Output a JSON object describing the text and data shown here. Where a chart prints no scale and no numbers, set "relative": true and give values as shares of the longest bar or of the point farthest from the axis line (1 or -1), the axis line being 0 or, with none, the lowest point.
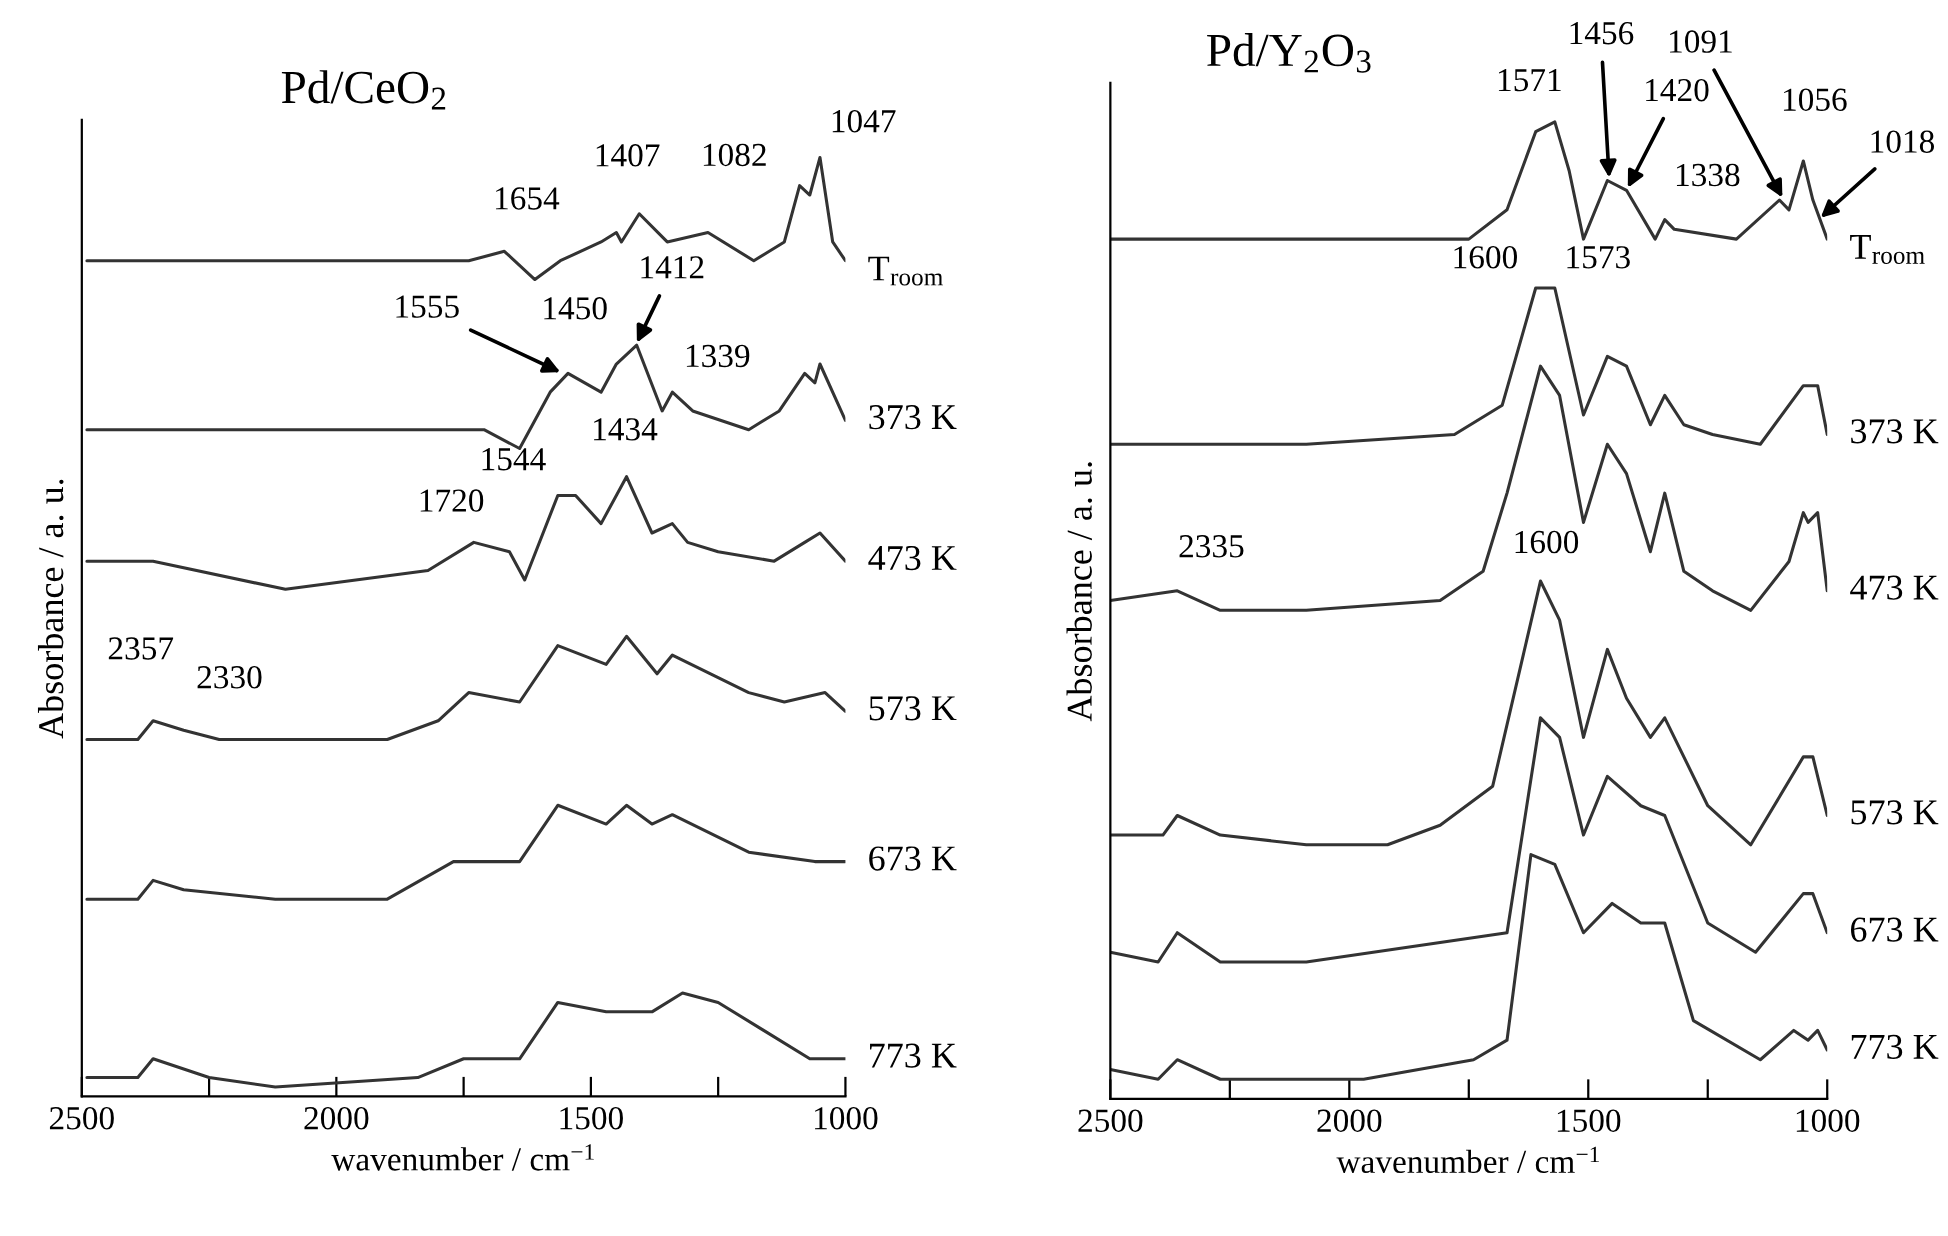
{
  "chart_data": [
    {
      "type": "line",
      "title": "Pd/CeO$_{2}$",
      "xlabel": "wavenumber / cm$^{−1}$",
      "ylabel": "Absorbance / a. u.",
      "relative": true,
      "tick_labels": "x",
      "xlim": [
        2500,
        1000
      ],
      "xticks": [
        2500,
        {
          "value": 2250,
          "label": null
        },
        2000,
        {
          "value": 1750,
          "label": null
        },
        1500,
        {
          "value": 1250,
          "label": null
        },
        1000
      ],
      "series": [
        {
          "name": "T$_{room}$",
          "color": "#333333",
          "x": [
            2490,
            2100,
            1740,
            1670,
            1610,
            1560,
            1480,
            1450,
            1440,
            1405,
            1350,
            1270,
            1180,
            1120,
            1090,
            1070,
            1050,
            1025,
            1000
          ],
          "values": [
            0.89,
            0.89,
            0.89,
            0.9,
            0.87,
            0.89,
            0.91,
            0.92,
            0.91,
            0.94,
            0.91,
            0.92,
            0.89,
            0.91,
            0.97,
            0.96,
            1.0,
            0.91,
            0.89
          ]
        },
        {
          "name": "373 K",
          "color": "#333333",
          "x": [
            2490,
            2100,
            1710,
            1640,
            1580,
            1545,
            1480,
            1450,
            1410,
            1360,
            1340,
            1300,
            1190,
            1130,
            1080,
            1060,
            1050,
            1000
          ],
          "values": [
            0.71,
            0.71,
            0.71,
            0.69,
            0.75,
            0.77,
            0.75,
            0.78,
            0.8,
            0.73,
            0.75,
            0.73,
            0.71,
            0.73,
            0.77,
            0.76,
            0.78,
            0.72
          ]
        },
        {
          "name": "473 K",
          "color": "#333333",
          "x": [
            2490,
            2360,
            2100,
            1820,
            1730,
            1660,
            1630,
            1565,
            1530,
            1480,
            1430,
            1380,
            1340,
            1310,
            1250,
            1140,
            1080,
            1050,
            1000
          ],
          "values": [
            0.57,
            0.57,
            0.54,
            0.56,
            0.59,
            0.58,
            0.55,
            0.64,
            0.64,
            0.61,
            0.66,
            0.6,
            0.61,
            0.59,
            0.58,
            0.57,
            0.59,
            0.6,
            0.57
          ]
        },
        {
          "name": "573 K",
          "color": "#333333",
          "x": [
            2490,
            2390,
            2360,
            2300,
            2230,
            2120,
            1900,
            1800,
            1740,
            1640,
            1565,
            1470,
            1430,
            1370,
            1340,
            1190,
            1120,
            1040,
            1000
          ],
          "values": [
            0.38,
            0.38,
            0.4,
            0.39,
            0.38,
            0.38,
            0.38,
            0.4,
            0.43,
            0.42,
            0.48,
            0.46,
            0.49,
            0.45,
            0.47,
            0.43,
            0.42,
            0.43,
            0.41
          ]
        },
        {
          "name": "673 K",
          "color": "#333333",
          "x": [
            2490,
            2390,
            2360,
            2300,
            2120,
            1900,
            1770,
            1640,
            1565,
            1470,
            1430,
            1380,
            1340,
            1190,
            1060,
            1025,
            1000
          ],
          "values": [
            0.21,
            0.21,
            0.23,
            0.22,
            0.21,
            0.21,
            0.25,
            0.25,
            0.31,
            0.29,
            0.31,
            0.29,
            0.3,
            0.26,
            0.25,
            0.25,
            0.25
          ]
        },
        {
          "name": "773 K",
          "color": "#333333",
          "x": [
            2490,
            2390,
            2360,
            2250,
            2120,
            1840,
            1750,
            1640,
            1565,
            1470,
            1380,
            1320,
            1250,
            1070,
            1000
          ],
          "values": [
            0.02,
            0.02,
            0.04,
            0.02,
            0.01,
            0.02,
            0.04,
            0.04,
            0.1,
            0.09,
            0.09,
            0.11,
            0.1,
            0.04,
            0.04
          ]
        }
      ],
      "annotations": [
        {
          "text": "1654",
          "x": 1654,
          "y": 0.9
        },
        {
          "text": "1407",
          "x": 1407,
          "y": 0.94
        },
        {
          "text": "1082",
          "x": 1082,
          "y": 0.97
        },
        {
          "text": "1047",
          "x": 1047,
          "y": 1.0
        },
        {
          "text": "1555",
          "x": 1555,
          "y": 0.77
        },
        {
          "text": "1450",
          "x": 1450,
          "y": 0.78
        },
        {
          "text": "1412",
          "x": 1412,
          "y": 0.8
        },
        {
          "text": "1339",
          "x": 1339,
          "y": 0.75
        },
        {
          "text": "1544",
          "x": 1544,
          "y": 0.64
        },
        {
          "text": "1434",
          "x": 1434,
          "y": 0.66
        },
        {
          "text": "1720",
          "x": 1720,
          "y": 0.59
        },
        {
          "text": "2357",
          "x": 2357,
          "y": 0.4
        },
        {
          "text": "2330",
          "x": 2330,
          "y": 0.39
        }
      ]
    },
    {
      "type": "line",
      "title": "Pd/Y$_{2}$O$_{3}$",
      "xlabel": "wavenumber / cm$^{−1}$",
      "ylabel": "Absorbance / a. u.",
      "relative": true,
      "tick_labels": "x",
      "xlim": [
        2500,
        1000
      ],
      "xticks": [
        2500,
        {
          "value": 2250,
          "label": null
        },
        2000,
        {
          "value": 1750,
          "label": null
        },
        1500,
        {
          "value": 1250,
          "label": null
        },
        1000
      ],
      "series": [
        {
          "name": "T$_{room}$",
          "color": "#333333",
          "x": [
            2500,
            2090,
            1750,
            1670,
            1610,
            1570,
            1540,
            1510,
            1460,
            1420,
            1360,
            1340,
            1320,
            1190,
            1100,
            1080,
            1050,
            1030,
            1000
          ],
          "values": [
            0.88,
            0.88,
            0.88,
            0.91,
            0.99,
            1.0,
            0.95,
            0.88,
            0.94,
            0.93,
            0.88,
            0.9,
            0.89,
            0.88,
            0.92,
            0.91,
            0.96,
            0.92,
            0.88
          ]
        },
        {
          "name": "373 K",
          "color": "#333333",
          "x": [
            2500,
            2090,
            1780,
            1680,
            1610,
            1590,
            1570,
            1510,
            1460,
            1420,
            1370,
            1340,
            1300,
            1240,
            1140,
            1050,
            1020,
            1000
          ],
          "values": [
            0.67,
            0.67,
            0.68,
            0.71,
            0.83,
            0.83,
            0.83,
            0.7,
            0.76,
            0.75,
            0.69,
            0.72,
            0.69,
            0.68,
            0.67,
            0.73,
            0.73,
            0.68
          ]
        },
        {
          "name": "473 K",
          "color": "#333333",
          "x": [
            2500,
            2360,
            2270,
            2090,
            1810,
            1720,
            1670,
            1600,
            1560,
            1510,
            1460,
            1420,
            1370,
            1340,
            1300,
            1240,
            1160,
            1080,
            1050,
            1040,
            1020,
            1000
          ],
          "values": [
            0.51,
            0.52,
            0.5,
            0.5,
            0.51,
            0.54,
            0.62,
            0.75,
            0.72,
            0.59,
            0.67,
            0.64,
            0.56,
            0.62,
            0.54,
            0.52,
            0.5,
            0.55,
            0.6,
            0.59,
            0.6,
            0.52
          ]
        },
        {
          "name": "573 K",
          "color": "#333333",
          "x": [
            2500,
            2390,
            2360,
            2270,
            2090,
            1920,
            1810,
            1700,
            1600,
            1560,
            1510,
            1460,
            1420,
            1370,
            1340,
            1250,
            1160,
            1050,
            1030,
            1000
          ],
          "values": [
            0.27,
            0.27,
            0.29,
            0.27,
            0.26,
            0.26,
            0.28,
            0.32,
            0.53,
            0.49,
            0.37,
            0.46,
            0.41,
            0.37,
            0.39,
            0.3,
            0.26,
            0.35,
            0.35,
            0.29
          ]
        },
        {
          "name": "673 K",
          "color": "#333333",
          "x": [
            2500,
            2400,
            2360,
            2270,
            2090,
            1810,
            1670,
            1600,
            1560,
            1510,
            1460,
            1390,
            1340,
            1250,
            1150,
            1050,
            1030,
            1000
          ],
          "values": [
            0.15,
            0.14,
            0.17,
            0.14,
            0.14,
            0.16,
            0.17,
            0.39,
            0.37,
            0.27,
            0.33,
            0.3,
            0.29,
            0.18,
            0.15,
            0.21,
            0.21,
            0.17
          ]
        },
        {
          "name": "773 K",
          "color": "#333333",
          "x": [
            2500,
            2400,
            2360,
            2270,
            1970,
            1740,
            1670,
            1620,
            1570,
            1510,
            1450,
            1390,
            1340,
            1280,
            1140,
            1070,
            1040,
            1020,
            1000
          ],
          "values": [
            0.03,
            0.02,
            0.04,
            0.02,
            0.02,
            0.04,
            0.06,
            0.25,
            0.24,
            0.17,
            0.2,
            0.18,
            0.18,
            0.08,
            0.04,
            0.07,
            0.06,
            0.07,
            0.05
          ]
        }
      ],
      "annotations": [
        {
          "text": "1571",
          "x": 1571,
          "y": 1.0
        },
        {
          "text": "1456",
          "x": 1456,
          "y": 0.94
        },
        {
          "text": "1420",
          "x": 1420,
          "y": 0.93
        },
        {
          "text": "1338",
          "x": 1338,
          "y": 0.9
        },
        {
          "text": "1091",
          "x": 1091,
          "y": 0.92
        },
        {
          "text": "1056",
          "x": 1056,
          "y": 0.96
        },
        {
          "text": "1018",
          "x": 1018,
          "y": 0.9
        },
        {
          "text": "1600",
          "x": 1600,
          "y": 0.83
        },
        {
          "text": "1573",
          "x": 1573,
          "y": 0.83
        },
        {
          "text": "2335",
          "x": 2335,
          "y": 0.52
        },
        {
          "text": "1600",
          "x": 1600,
          "y": 0.53
        }
      ]
    }
  ]
}
